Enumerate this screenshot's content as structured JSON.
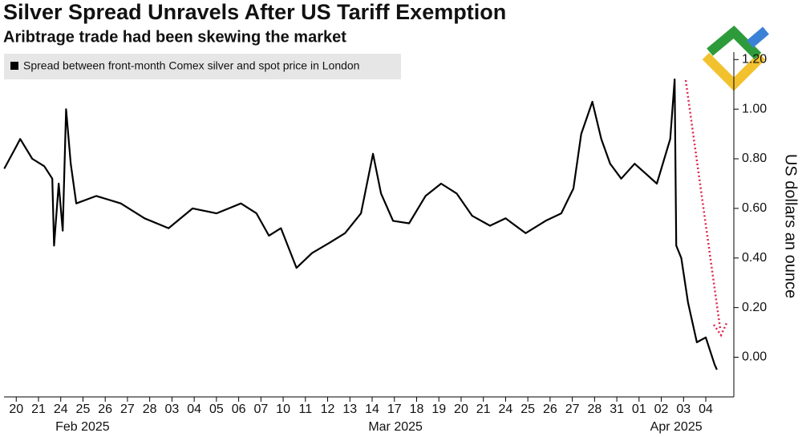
{
  "chart_data": {
    "type": "line",
    "title": "Silver Spread Unravels After US Tariff Exemption",
    "subtitle": "Aribtrage trade had been skewing the market",
    "y_label": "US dollars an ounce",
    "series": [
      {
        "name": "Spread between front-month Comex silver and spot price in London",
        "color": "#000000",
        "x": [
          -0.54,
          0,
          0.18,
          0.72,
          1.26,
          1.62,
          1.7,
          1.91,
          2.09,
          2.24,
          2.45,
          2.7,
          3.6,
          4.7,
          5.77,
          6.85,
          7.93,
          9.0,
          10.1,
          10.8,
          11.36,
          11.9,
          12.6,
          13.3,
          14.06,
          14.78,
          15.5,
          16.04,
          16.4,
          16.94,
          17.66,
          18.4,
          19.1,
          19.8,
          20.5,
          21.3,
          22.0,
          22.9,
          23.8,
          24.5,
          25.05,
          25.4,
          25.9,
          26.3,
          26.7,
          27.2,
          27.8,
          28.3,
          28.8,
          29.4,
          29.6,
          29.67,
          29.9,
          30.2,
          30.6,
          31.0,
          31.4,
          31.5
        ],
        "values": [
          0.76,
          0.85,
          0.88,
          0.8,
          0.77,
          0.72,
          0.45,
          0.7,
          0.51,
          1.0,
          0.78,
          0.62,
          0.65,
          0.62,
          0.56,
          0.52,
          0.6,
          0.58,
          0.62,
          0.58,
          0.49,
          0.52,
          0.36,
          0.42,
          0.46,
          0.5,
          0.58,
          0.82,
          0.66,
          0.55,
          0.54,
          0.65,
          0.7,
          0.66,
          0.57,
          0.53,
          0.56,
          0.5,
          0.55,
          0.58,
          0.68,
          0.9,
          1.03,
          0.88,
          0.78,
          0.72,
          0.78,
          0.74,
          0.7,
          0.88,
          1.12,
          0.45,
          0.4,
          0.22,
          0.06,
          0.08,
          -0.03,
          -0.05
        ]
      }
    ],
    "xlim": [
      -0.55,
      31.9
    ],
    "xticks": [
      {
        "value": 0,
        "label": "20"
      },
      {
        "value": 1,
        "label": "21"
      },
      {
        "value": 2,
        "label": "24"
      },
      {
        "value": 3,
        "label": "25"
      },
      {
        "value": 4,
        "label": "26"
      },
      {
        "value": 5,
        "label": "27"
      },
      {
        "value": 6,
        "label": "28"
      },
      {
        "value": 7,
        "label": "03"
      },
      {
        "value": 8,
        "label": "04"
      },
      {
        "value": 9,
        "label": "05"
      },
      {
        "value": 10,
        "label": "06"
      },
      {
        "value": 11,
        "label": "07"
      },
      {
        "value": 12,
        "label": "10"
      },
      {
        "value": 13,
        "label": "11"
      },
      {
        "value": 14,
        "label": "12"
      },
      {
        "value": 15,
        "label": "13"
      },
      {
        "value": 16,
        "label": "14"
      },
      {
        "value": 17,
        "label": "17"
      },
      {
        "value": 18,
        "label": "18"
      },
      {
        "value": 19,
        "label": "19"
      },
      {
        "value": 20,
        "label": "20"
      },
      {
        "value": 21,
        "label": "21"
      },
      {
        "value": 22,
        "label": "24"
      },
      {
        "value": 23,
        "label": "25"
      },
      {
        "value": 24,
        "label": "26"
      },
      {
        "value": 25,
        "label": "27"
      },
      {
        "value": 26,
        "label": "28"
      },
      {
        "value": 27,
        "label": "31"
      },
      {
        "value": 28,
        "label": "01"
      },
      {
        "value": 29,
        "label": "02"
      },
      {
        "value": 30,
        "label": "03"
      },
      {
        "value": 31,
        "label": "04"
      }
    ],
    "month_labels": [
      {
        "value": 2.98,
        "label": "Feb 2025"
      },
      {
        "value": 17.05,
        "label": "Mar 2025"
      },
      {
        "value": 29.67,
        "label": "Apr 2025"
      }
    ],
    "ylim": [
      -0.16,
      1.23
    ],
    "yticks": [
      {
        "value": 0,
        "label": "0.00"
      },
      {
        "value": 0.2,
        "label": "0.20"
      },
      {
        "value": 0.4,
        "label": "0.40"
      },
      {
        "value": 0.6,
        "label": "0.60"
      },
      {
        "value": 0.8,
        "label": "0.80"
      },
      {
        "value": 1,
        "label": "1.00"
      },
      {
        "value": 1.2,
        "label": "1.20"
      }
    ]
  }
}
